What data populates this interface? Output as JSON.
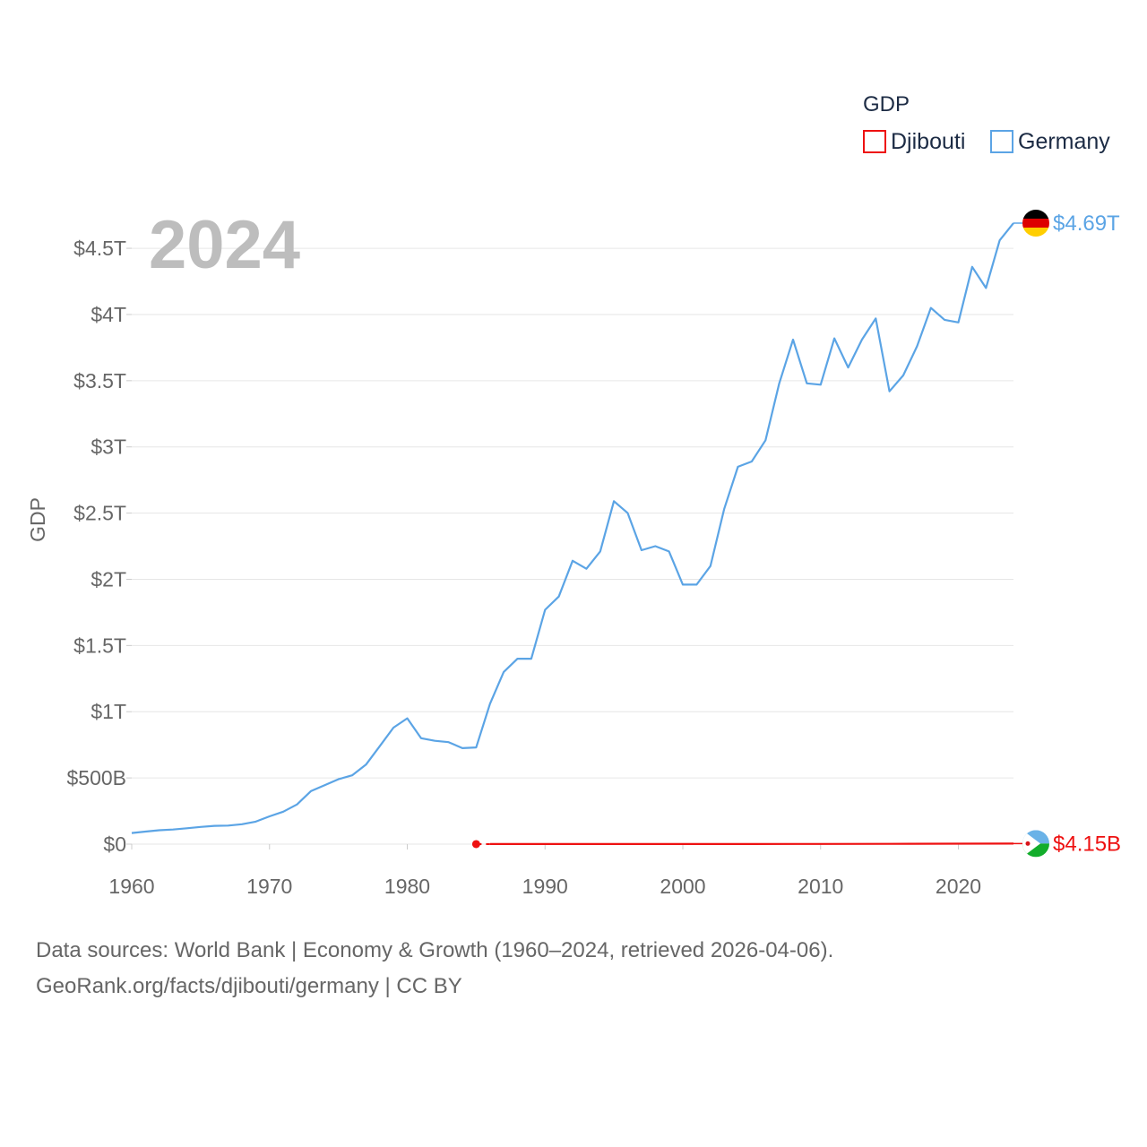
{
  "chart_data": {
    "type": "line",
    "title": "",
    "ylabel": "GDP",
    "xlabel": "",
    "year_label": "2024",
    "legend_title": "GDP",
    "xlim": [
      1960,
      2024
    ],
    "ylim": [
      0,
      4.69
    ],
    "y_unit": "USD trillions",
    "x_ticks": [
      1960,
      1970,
      1980,
      1990,
      2000,
      2010,
      2020
    ],
    "x_tick_labels": [
      "1960",
      "1970",
      "1980",
      "1990",
      "2000",
      "2010",
      "2020"
    ],
    "y_ticks": [
      0,
      0.5,
      1,
      1.5,
      2,
      2.5,
      3,
      3.5,
      4,
      4.5
    ],
    "y_tick_labels": [
      "$0",
      "$500B",
      "$1T",
      "$1.5T",
      "$2T",
      "$2.5T",
      "$3T",
      "$3.5T",
      "$4T",
      "$4.5T"
    ],
    "series": [
      {
        "name": "Djibouti",
        "color": "#ee1111",
        "flag": "djibouti-flag",
        "end_label": "$4.15B",
        "x": [
          1985,
          1986,
          1987,
          1990,
          1995,
          2000,
          2005,
          2010,
          2015,
          2020,
          2024
        ],
        "values": [
          0.00034,
          0.00035,
          0.00036,
          0.00045,
          0.0005,
          0.00055,
          0.00071,
          0.00113,
          0.00172,
          0.00318,
          0.00415
        ]
      },
      {
        "name": "Germany",
        "color": "#5ba4e5",
        "flag": "germany-flag",
        "end_label": "$4.69T",
        "x": [
          1960,
          1961,
          1962,
          1963,
          1964,
          1965,
          1966,
          1967,
          1968,
          1969,
          1970,
          1971,
          1972,
          1973,
          1974,
          1975,
          1976,
          1977,
          1978,
          1979,
          1980,
          1981,
          1982,
          1983,
          1984,
          1985,
          1986,
          1987,
          1988,
          1989,
          1990,
          1991,
          1992,
          1993,
          1994,
          1995,
          1996,
          1997,
          1998,
          1999,
          2000,
          2001,
          2002,
          2003,
          2004,
          2005,
          2006,
          2007,
          2008,
          2009,
          2010,
          2011,
          2012,
          2013,
          2014,
          2015,
          2016,
          2017,
          2018,
          2019,
          2020,
          2021,
          2022,
          2023,
          2024
        ],
        "values": [
          0.084,
          0.095,
          0.105,
          0.11,
          0.12,
          0.13,
          0.138,
          0.14,
          0.15,
          0.17,
          0.21,
          0.245,
          0.3,
          0.4,
          0.445,
          0.49,
          0.52,
          0.6,
          0.74,
          0.88,
          0.95,
          0.8,
          0.78,
          0.77,
          0.725,
          0.73,
          1.06,
          1.3,
          1.4,
          1.4,
          1.77,
          1.87,
          2.14,
          2.08,
          2.21,
          2.59,
          2.5,
          2.22,
          2.25,
          2.21,
          1.96,
          1.96,
          2.1,
          2.53,
          2.85,
          2.89,
          3.05,
          3.48,
          3.81,
          3.48,
          3.47,
          3.82,
          3.6,
          3.81,
          3.97,
          3.42,
          3.54,
          3.76,
          4.05,
          3.96,
          3.94,
          4.36,
          4.2,
          4.56,
          4.69
        ]
      }
    ]
  },
  "footer": {
    "line1": "Data sources: World Bank | Economy & Growth (1960–2024, retrieved 2026-04-06).",
    "line2": "GeoRank.org/facts/djibouti/germany | CC BY"
  }
}
